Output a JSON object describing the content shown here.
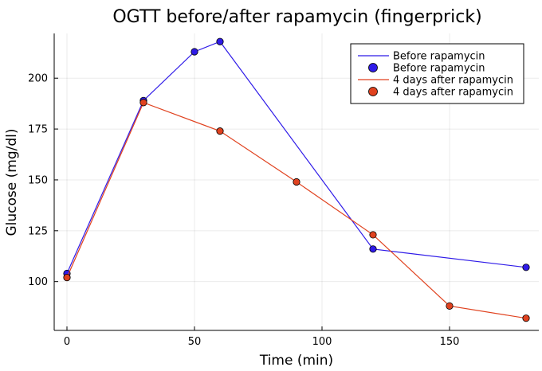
{
  "chart_data": {
    "type": "line",
    "title": "OGTT before/after rapamycin (fingerprick)",
    "xlabel": "Time (min)",
    "ylabel": "Glucose (mg/dl)",
    "xlim": [
      -5,
      185
    ],
    "ylim": [
      76,
      222
    ],
    "xticks": [
      0,
      50,
      100,
      150
    ],
    "yticks": [
      100,
      125,
      150,
      175,
      200
    ],
    "grid": true,
    "legend_position": "top-right",
    "series": [
      {
        "name": "Before rapamycin",
        "color": "#2f1be8",
        "x": [
          0,
          30,
          50,
          60,
          120,
          180
        ],
        "y": [
          104,
          189,
          213,
          218,
          116,
          107
        ]
      },
      {
        "name": "4 days after rapamycin",
        "color": "#e0421f",
        "x": [
          0,
          30,
          60,
          90,
          120,
          150,
          180
        ],
        "y": [
          102,
          188,
          174,
          149,
          123,
          88,
          82
        ]
      }
    ],
    "legend": [
      {
        "label": "Before rapamycin",
        "kind": "line",
        "series": 0
      },
      {
        "label": "Before rapamycin",
        "kind": "marker",
        "series": 0
      },
      {
        "label": "4 days after rapamycin",
        "kind": "line",
        "series": 1
      },
      {
        "label": "4 days after rapamycin",
        "kind": "marker",
        "series": 1
      }
    ]
  }
}
